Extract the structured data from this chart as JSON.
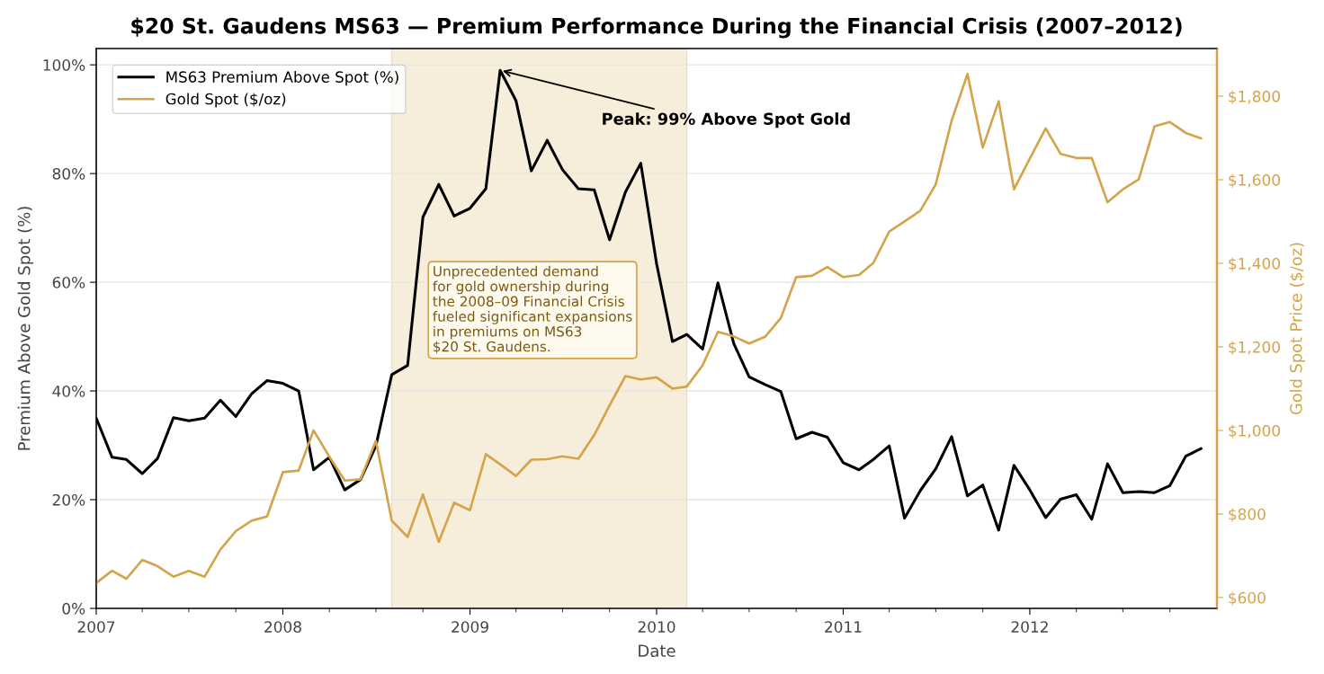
{
  "chart_data": {
    "type": "line",
    "title": "$20 St. Gaudens MS63 — Premium Performance During the Financial Crisis (2007–2012)",
    "xlabel": "Date",
    "ylabel": "Premium Above Gold Spot (%)",
    "y2label": "Gold Spot Price ($/oz)",
    "x": [
      "2007-01",
      "2007-02",
      "2007-03",
      "2007-04",
      "2007-05",
      "2007-06",
      "2007-07",
      "2007-08",
      "2007-09",
      "2007-10",
      "2007-11",
      "2007-12",
      "2008-01",
      "2008-02",
      "2008-03",
      "2008-04",
      "2008-05",
      "2008-06",
      "2008-07",
      "2008-08",
      "2008-09",
      "2008-10",
      "2008-11",
      "2008-12",
      "2009-01",
      "2009-02",
      "2009-03",
      "2009-04",
      "2009-05",
      "2009-06",
      "2009-07",
      "2009-08",
      "2009-09",
      "2009-10",
      "2009-11",
      "2009-12",
      "2010-01",
      "2010-02",
      "2010-03",
      "2010-04",
      "2010-05",
      "2010-06",
      "2010-07",
      "2010-08",
      "2010-09",
      "2010-10",
      "2010-11",
      "2010-12",
      "2011-01",
      "2011-02",
      "2011-03",
      "2011-04",
      "2011-05",
      "2011-06",
      "2011-07",
      "2011-08",
      "2011-09",
      "2011-10",
      "2011-11",
      "2011-12",
      "2012-01",
      "2012-02",
      "2012-03",
      "2012-04",
      "2012-05",
      "2012-06",
      "2012-07",
      "2012-08",
      "2012-09",
      "2012-10",
      "2012-11",
      "2012-12"
    ],
    "series": [
      {
        "name": "MS63 Premium Above Spot (%)",
        "color": "#000000",
        "values": [
          35.0,
          27.8,
          27.4,
          24.8,
          27.6,
          35.1,
          34.5,
          35.0,
          38.3,
          35.3,
          39.5,
          41.9,
          41.4,
          40.0,
          25.5,
          27.8,
          21.8,
          23.7,
          29.9,
          43.0,
          44.7,
          72.0,
          78.0,
          72.2,
          73.6,
          77.2,
          99.0,
          93.4,
          80.5,
          86.1,
          80.7,
          77.2,
          77.0,
          67.8,
          76.6,
          81.9,
          63.4,
          49.1,
          50.4,
          47.7,
          59.9,
          48.7,
          42.6,
          41.2,
          39.9,
          31.2,
          32.4,
          31.5,
          26.8,
          25.5,
          27.4,
          29.9,
          16.6,
          21.7,
          25.7,
          31.6,
          20.7,
          22.7,
          14.4,
          26.3,
          21.8,
          16.7,
          20.1,
          20.9,
          16.4,
          26.6,
          21.3,
          21.5,
          21.3,
          22.6,
          28.0,
          29.4
        ]
      },
      {
        "name": "Gold Spot ($/oz)",
        "color": "#d4a34a",
        "axis": "y2",
        "values": [
          635,
          664,
          645,
          690,
          675,
          650,
          664,
          650,
          715,
          759,
          784,
          794,
          900,
          904,
          1000,
          937,
          880,
          883,
          975,
          784,
          745,
          847,
          733,
          827,
          809,
          943,
          919,
          891,
          930,
          931,
          938,
          932,
          989,
          1060,
          1130,
          1122,
          1127,
          1100,
          1105,
          1156,
          1236,
          1225,
          1208,
          1224,
          1269,
          1367,
          1370,
          1391,
          1367,
          1372,
          1401,
          1476,
          1500,
          1526,
          1589,
          1741,
          1853,
          1677,
          1788,
          1577,
          1651,
          1723,
          1662,
          1652,
          1652,
          1546,
          1577,
          1601,
          1728,
          1738,
          1712,
          1699
        ]
      }
    ],
    "xlim": [
      "2007-01-01",
      "2013-01-01"
    ],
    "xticks": [
      {
        "value": "2007-01-01",
        "label": "2007"
      },
      {
        "value": "2007-04-01",
        "label": null
      },
      {
        "value": "2007-07-01",
        "label": null
      },
      {
        "value": "2007-10-01",
        "label": null
      },
      {
        "value": "2008-01-01",
        "label": "2008"
      },
      {
        "value": "2008-04-01",
        "label": null
      },
      {
        "value": "2008-07-01",
        "label": null
      },
      {
        "value": "2008-10-01",
        "label": null
      },
      {
        "value": "2009-01-01",
        "label": "2009"
      },
      {
        "value": "2009-04-01",
        "label": null
      },
      {
        "value": "2009-07-01",
        "label": null
      },
      {
        "value": "2009-10-01",
        "label": null
      },
      {
        "value": "2010-01-01",
        "label": "2010"
      },
      {
        "value": "2010-04-01",
        "label": null
      },
      {
        "value": "2010-07-01",
        "label": null
      },
      {
        "value": "2010-10-01",
        "label": null
      },
      {
        "value": "2011-01-01",
        "label": "2011"
      },
      {
        "value": "2011-04-01",
        "label": null
      },
      {
        "value": "2011-07-01",
        "label": null
      },
      {
        "value": "2011-10-01",
        "label": null
      },
      {
        "value": "2012-01-01",
        "label": "2012"
      },
      {
        "value": "2012-04-01",
        "label": null
      },
      {
        "value": "2012-07-01",
        "label": null
      },
      {
        "value": "2012-10-01",
        "label": null
      }
    ],
    "ylim": [
      0,
      103
    ],
    "yticks": [
      {
        "value": 0,
        "label": "0%"
      },
      {
        "value": 20,
        "label": "20%"
      },
      {
        "value": 40,
        "label": "40%"
      },
      {
        "value": 60,
        "label": "60%"
      },
      {
        "value": 80,
        "label": "80%"
      },
      {
        "value": 100,
        "label": "100%"
      }
    ],
    "y2lim": [
      574,
      1914
    ],
    "y2ticks": [
      {
        "value": 600,
        "label": "$600"
      },
      {
        "value": 800,
        "label": "$800"
      },
      {
        "value": 1000,
        "label": "$1,000"
      },
      {
        "value": 1200,
        "label": "$1,200"
      },
      {
        "value": 1400,
        "label": "$1,400"
      },
      {
        "value": 1600,
        "label": "$1,600"
      },
      {
        "value": 1800,
        "label": "$1,800"
      }
    ],
    "bands": [
      {
        "axis": "x",
        "from": "2008-08-01",
        "to": "2010-03-01",
        "color": "#f6eeda"
      }
    ],
    "annotations": [
      {
        "text": "Peak: 99% Above Spot Gold",
        "x": "2009-03",
        "y": 99
      },
      "Unprecedented demand\nfor gold ownership during\nthe 2008–09 Financial Crisis\nfueled significant expansions\nin premiums on MS63\n$20 St. Gaudens."
    ],
    "grid": "y",
    "legend": "top left",
    "line_style": "solid"
  }
}
